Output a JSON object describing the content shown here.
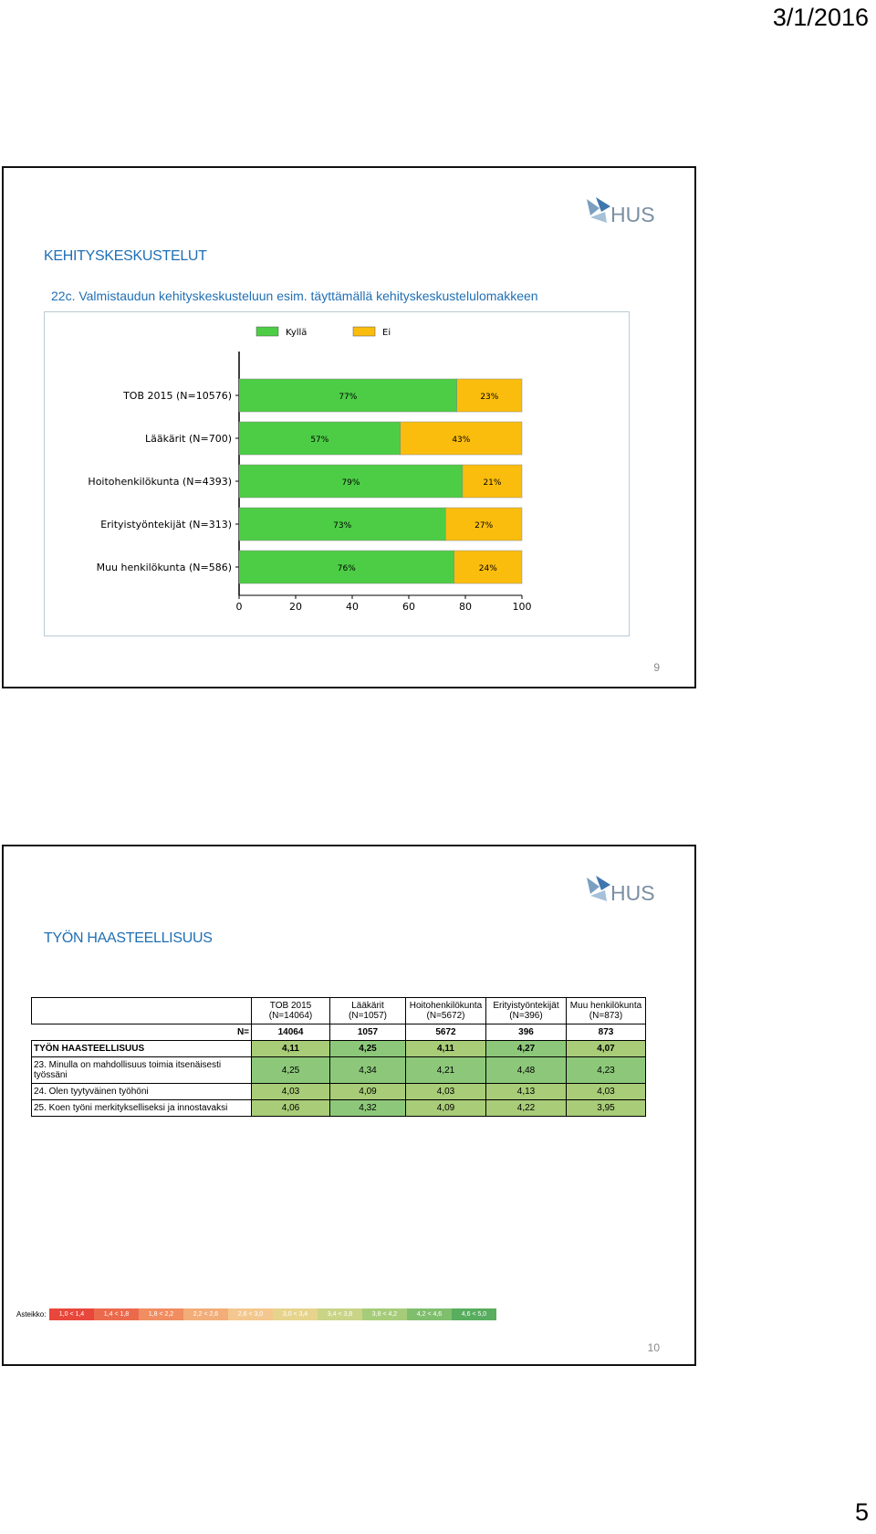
{
  "header": {
    "date": "3/1/2016"
  },
  "footer": {
    "page_number": "5"
  },
  "slide1": {
    "title": "KEHITYSKESKUSTELUT",
    "subtitle": "22c. Valmistaudun kehityskeskusteluun esim. täyttämällä kehityskeskustelulomakkeen",
    "slide_number": "9",
    "logo_text": "HUS"
  },
  "slide2": {
    "title": "TYÖN HAASTEELLISUUS",
    "slide_number": "10",
    "logo_text": "HUS",
    "table": {
      "headers": [
        "TOB 2015 (N=14064)",
        "Lääkärit (N=1057)",
        "Hoitohenkilökunta (N=5672)",
        "Erityistyöntekijät (N=396)",
        "Muu henkilökunta (N=873)"
      ],
      "n_label": "N=",
      "n_values": [
        "14064",
        "1057",
        "5672",
        "396",
        "873"
      ],
      "rows": [
        {
          "label": "TYÖN HAASTEELLISUUS",
          "values": [
            "4,11",
            "4,25",
            "4,11",
            "4,27",
            "4,07"
          ]
        },
        {
          "label": "23. Minulla on mahdollisuus toimia itsenäisesti työssäni",
          "values": [
            "4,25",
            "4,34",
            "4,21",
            "4,48",
            "4,23"
          ]
        },
        {
          "label": "24. Olen tyytyväinen työhöni",
          "values": [
            "4,03",
            "4,09",
            "4,03",
            "4,13",
            "4,03"
          ]
        },
        {
          "label": "25. Koen työni merkitykselliseksi ja innostavaksi",
          "values": [
            "4,06",
            "4,32",
            "4,09",
            "4,22",
            "3,95"
          ]
        }
      ]
    },
    "scale": {
      "label": "Asteikko:",
      "items": [
        "1,0 < 1,4",
        "1,4 < 1,8",
        "1,8 < 2,2",
        "2,2 < 2,6",
        "2,6 < 3,0",
        "3,0 < 3,4",
        "3,4 < 3,8",
        "3,8 < 4,2",
        "4,2 < 4,6",
        "4,6 < 5,0"
      ],
      "colors": [
        "#e8473b",
        "#ec6a4c",
        "#f08d61",
        "#f2ad78",
        "#f3c78d",
        "#e6d48c",
        "#c9d486",
        "#a6cc7a",
        "#7fbe6d",
        "#58ad5f"
      ]
    }
  },
  "chart_data": {
    "type": "bar",
    "stacked": true,
    "orientation": "horizontal",
    "categories": [
      "TOB 2015 (N=10576)",
      "Lääkärit (N=700)",
      "Hoitohenkilökunta (N=4393)",
      "Erityistyöntekijät (N=313)",
      "Muu henkilökunta (N=586)"
    ],
    "series": [
      {
        "name": "Kyllä",
        "values": [
          77,
          57,
          79,
          73,
          76
        ],
        "color": "#4ccd45"
      },
      {
        "name": "Ei",
        "values": [
          23,
          43,
          21,
          27,
          24
        ],
        "color": "#fbbd0d"
      }
    ],
    "xlim": [
      0,
      100
    ],
    "xticks": [
      0,
      20,
      40,
      60,
      80,
      100
    ],
    "legend": "top",
    "grid": false
  }
}
